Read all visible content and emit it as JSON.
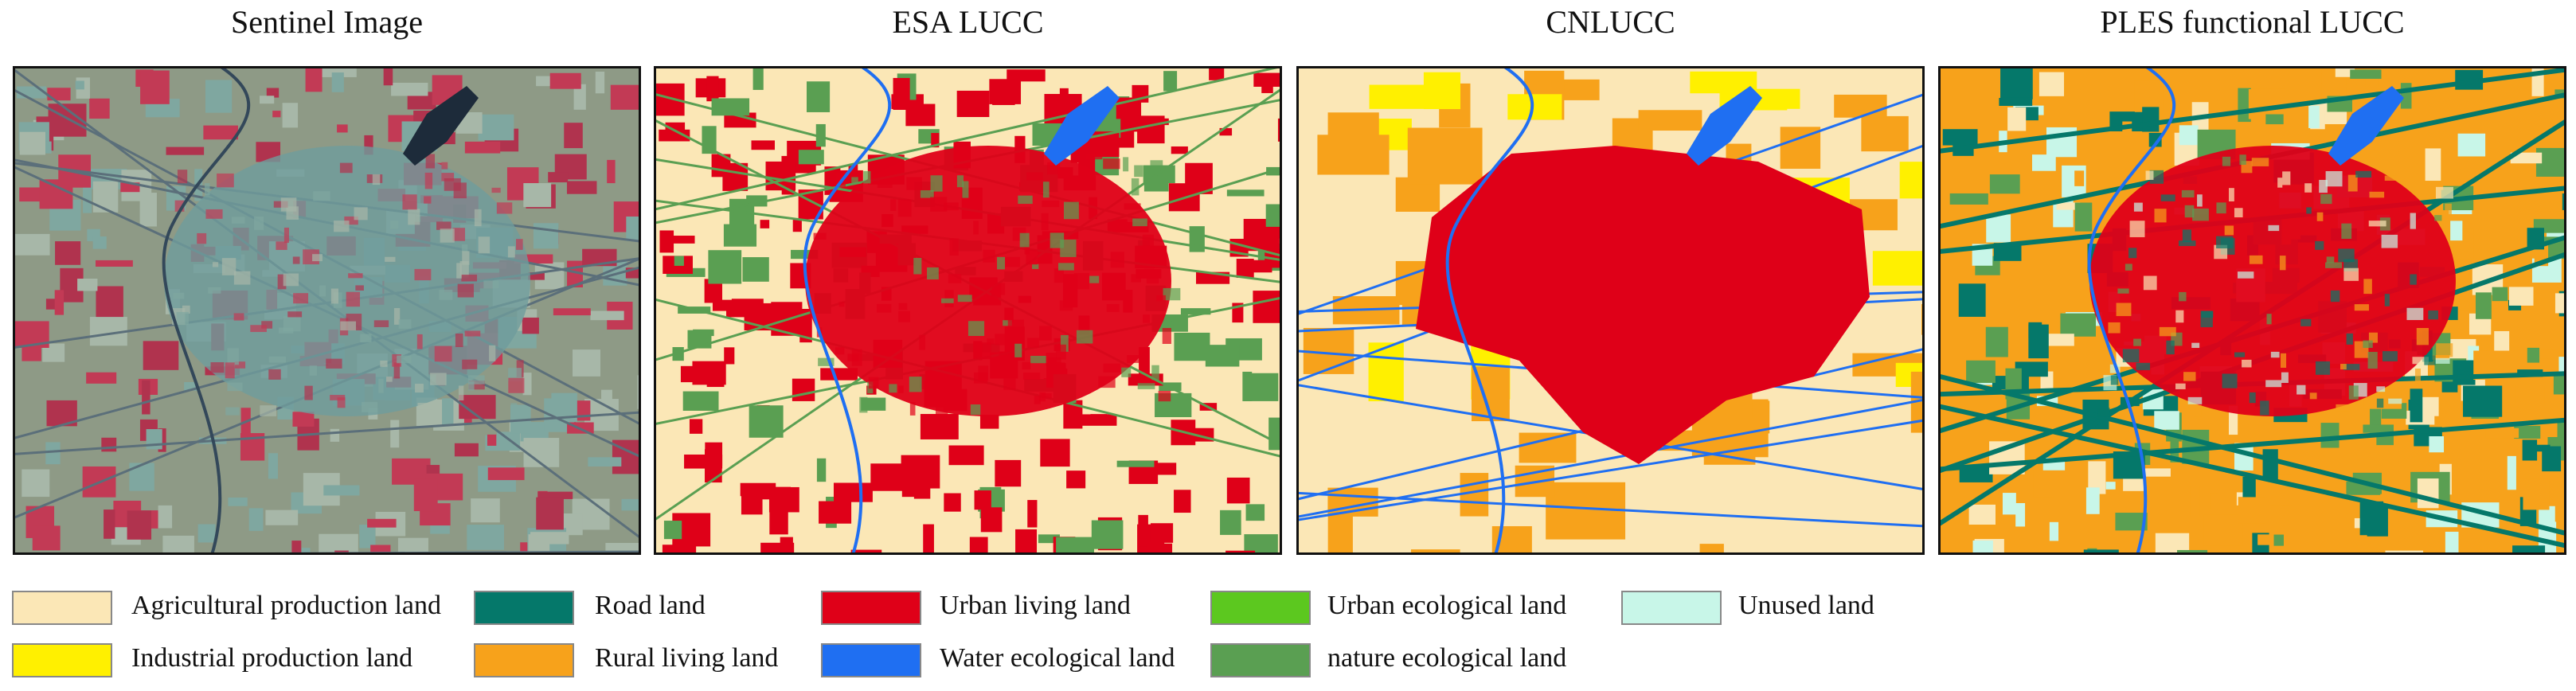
{
  "panels": [
    {
      "title": "Sentinel Image"
    },
    {
      "title": "ESA LUCC"
    },
    {
      "title": "CNLUCC"
    },
    {
      "title": "PLES functional LUCC"
    }
  ],
  "legend": [
    {
      "label": "Agricultural production land",
      "color": "#fbe7b6"
    },
    {
      "label": "Industrial production land",
      "color": "#fff000"
    },
    {
      "label": "Road land",
      "color": "#05786a"
    },
    {
      "label": "Rural living land",
      "color": "#f7a21b"
    },
    {
      "label": "Urban living land",
      "color": "#df0018"
    },
    {
      "label": "Water ecological land",
      "color": "#1f6ff2"
    },
    {
      "label": "Urban ecological land",
      "color": "#5cc81f"
    },
    {
      "label": "nature ecological land",
      "color": "#5a9f52"
    },
    {
      "label": "Unused land",
      "color": "#c8f6e8"
    }
  ]
}
